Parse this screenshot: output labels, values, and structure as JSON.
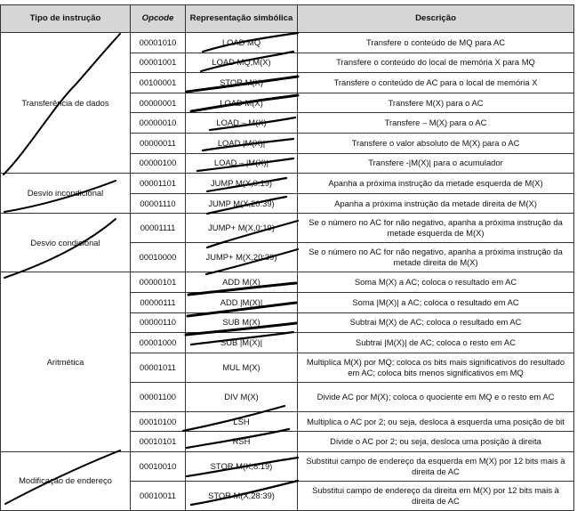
{
  "headers": {
    "type": "Tipo de instrução",
    "opcode": "Opcode",
    "symbolic": "Representação simbólica",
    "description": "Descrição"
  },
  "groups": [
    {
      "category": "Transferência de dados",
      "rows": [
        {
          "opcode": "00001010",
          "symbolic": "LOAD MQ",
          "description": "Transfere o conteúdo de MQ para AC"
        },
        {
          "opcode": "00001001",
          "symbolic": "LOAD MQ,M(X)",
          "description": "Transfere o conteúdo do local de memória X para MQ"
        },
        {
          "opcode": "00100001",
          "symbolic": "STOR M(X)",
          "description": "Transfere o conteúdo de AC para o local de memória X"
        },
        {
          "opcode": "00000001",
          "symbolic": "LOAD M(X)",
          "description": "Transfere M(X) para o AC"
        },
        {
          "opcode": "00000010",
          "symbolic": "LOAD – M(X)",
          "description": "Transfere – M(X) para o AC"
        },
        {
          "opcode": "00000011",
          "symbolic": "LOAD |M(X)|",
          "description": "Transfere o valor absoluto de M(X) para o AC"
        },
        {
          "opcode": "00000100",
          "symbolic": "LOAD – |M(X)|",
          "description": "Transfere -|M(X)| para o acumulador"
        }
      ]
    },
    {
      "category": "Desvio incondicional",
      "rows": [
        {
          "opcode": "00001101",
          "symbolic": "JUMP M(X,0:19)",
          "description": "Apanha a próxima instrução da metade esquerda de M(X)"
        },
        {
          "opcode": "00001110",
          "symbolic": "JUMP M(X,20:39)",
          "description": "Apanha a próxima instrução da metade direita de M(X)"
        }
      ]
    },
    {
      "category": "Desvio condicional",
      "rows": [
        {
          "opcode": "00001111",
          "symbolic": "JUMP+ M(X,0:19)",
          "description": "Se o número no AC for não negativo, apanha a próxima instrução da metade esquerda de M(X)",
          "tall": true
        },
        {
          "opcode": "00010000",
          "symbolic": "JUMP+ M(X,20:39)",
          "description": "Se o número no AC for não negativo, apanha a próxima instrução da metade direita de M(X)",
          "tall": true
        }
      ]
    },
    {
      "category": "Aritmética",
      "rows": [
        {
          "opcode": "00000101",
          "symbolic": "ADD M(X)",
          "description": "Soma M(X) a AC; coloca o resultado em AC"
        },
        {
          "opcode": "00000111",
          "symbolic": "ADD |M(X)|",
          "description": "Soma |M(X)| a AC; coloca o resultado em AC"
        },
        {
          "opcode": "00000110",
          "symbolic": "SUB M(X)",
          "description": "Subtrai M(X) de AC; coloca o resultado em AC"
        },
        {
          "opcode": "00001000",
          "symbolic": "SUB |M(X)|",
          "description": "Subtrai |M(X)| de AC; coloca o resto em AC"
        },
        {
          "opcode": "00001011",
          "symbolic": "MUL M(X)",
          "description": "Multiplica M(X) por MQ; coloca os bits mais significativos do resultado em AC; coloca bits menos significativos em MQ",
          "tall": true
        },
        {
          "opcode": "00001100",
          "symbolic": "DIV M(X)",
          "description": "Divide AC por M(X); coloca o quociente em MQ e o resto em AC",
          "tall": true
        },
        {
          "opcode": "00010100",
          "symbolic": "LSH",
          "description": "Multiplica o AC por 2; ou seja, desloca à esquerda uma posição de bit"
        },
        {
          "opcode": "00010101",
          "symbolic": "RSH",
          "description": "Divide o AC por 2; ou seja, desloca uma posição à direita"
        }
      ]
    },
    {
      "category": "Modificação de endereço",
      "rows": [
        {
          "opcode": "00010010",
          "symbolic": "STOR M(X,8:19)",
          "description": "Substitui campo de endereço da esquerda em M(X) por 12 bits mais à direita de AC",
          "tall": true
        },
        {
          "opcode": "00010011",
          "symbolic": "STOR M(X,28:39)",
          "description": "Substitui campo de endereço da direita em M(X) por 12 bits mais à direita de AC",
          "tall": true
        }
      ]
    }
  ]
}
